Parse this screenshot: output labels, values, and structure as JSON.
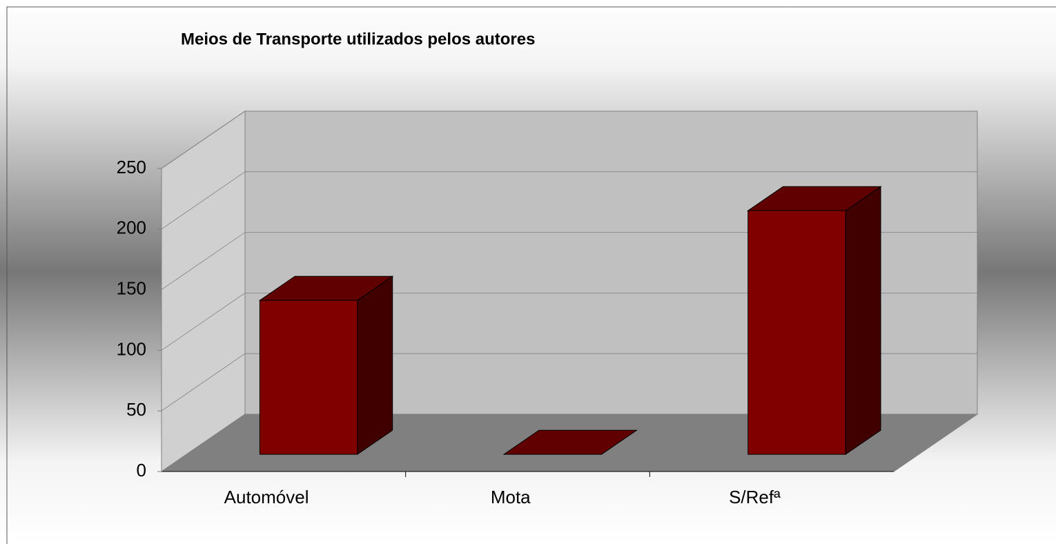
{
  "chart_data": {
    "type": "bar3d",
    "title": "Meios de Transporte utilizados pelos autores",
    "categories": [
      "Automóvel",
      "Mota",
      "S/Refª"
    ],
    "values": [
      127,
      0,
      201
    ],
    "color": "#800000",
    "ylim": [
      0,
      250
    ],
    "yticks": [
      0,
      50,
      100,
      150,
      200,
      250
    ],
    "grid": true
  }
}
